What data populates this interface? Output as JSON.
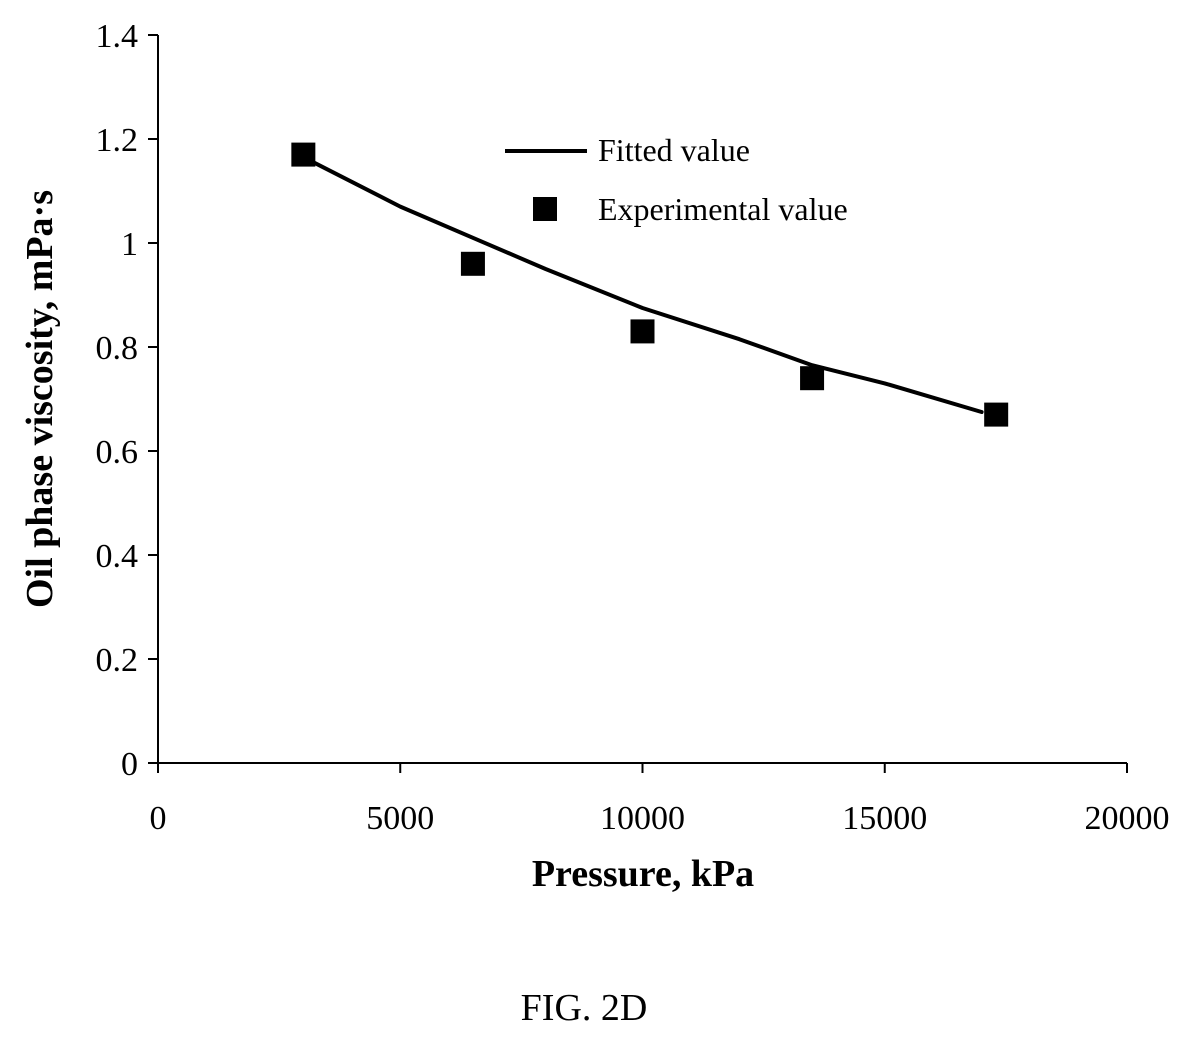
{
  "chart_data": {
    "type": "line",
    "xlabel": "Pressure, kPa",
    "ylabel": "Oil phase viscosity, mPa·s",
    "xlim": [
      0,
      20000
    ],
    "ylim": [
      0,
      1.4
    ],
    "x_ticks": [
      {
        "value": 0,
        "label": "0"
      },
      {
        "value": 5000,
        "label": "5000"
      },
      {
        "value": 10000,
        "label": "10000"
      },
      {
        "value": 15000,
        "label": "15000"
      },
      {
        "value": 20000,
        "label": "20000"
      }
    ],
    "y_ticks": [
      {
        "value": 0,
        "label": "0"
      },
      {
        "value": 0.2,
        "label": "0.2"
      },
      {
        "value": 0.4,
        "label": "0.4"
      },
      {
        "value": 0.6,
        "label": "0.6"
      },
      {
        "value": 0.8,
        "label": "0.8"
      },
      {
        "value": 1.0,
        "label": "1"
      },
      {
        "value": 1.2,
        "label": "1.2"
      },
      {
        "value": 1.4,
        "label": "1.4"
      }
    ],
    "grid": false,
    "legend_position": "top-right",
    "series": [
      {
        "name": "Fitted value",
        "kind": "line",
        "color": "#000000",
        "x": [
          3000,
          5000,
          6500,
          8000,
          10000,
          12000,
          13500,
          15000,
          17000
        ],
        "y": [
          1.165,
          1.07,
          1.01,
          0.95,
          0.875,
          0.815,
          0.765,
          0.73,
          0.675
        ]
      },
      {
        "name": "Experimental value",
        "kind": "scatter",
        "marker": "square",
        "color": "#000000",
        "x": [
          3000,
          6500,
          10000,
          13500,
          17300
        ],
        "y": [
          1.17,
          0.96,
          0.83,
          0.74,
          0.67
        ]
      }
    ]
  },
  "caption": "FIG. 2D"
}
